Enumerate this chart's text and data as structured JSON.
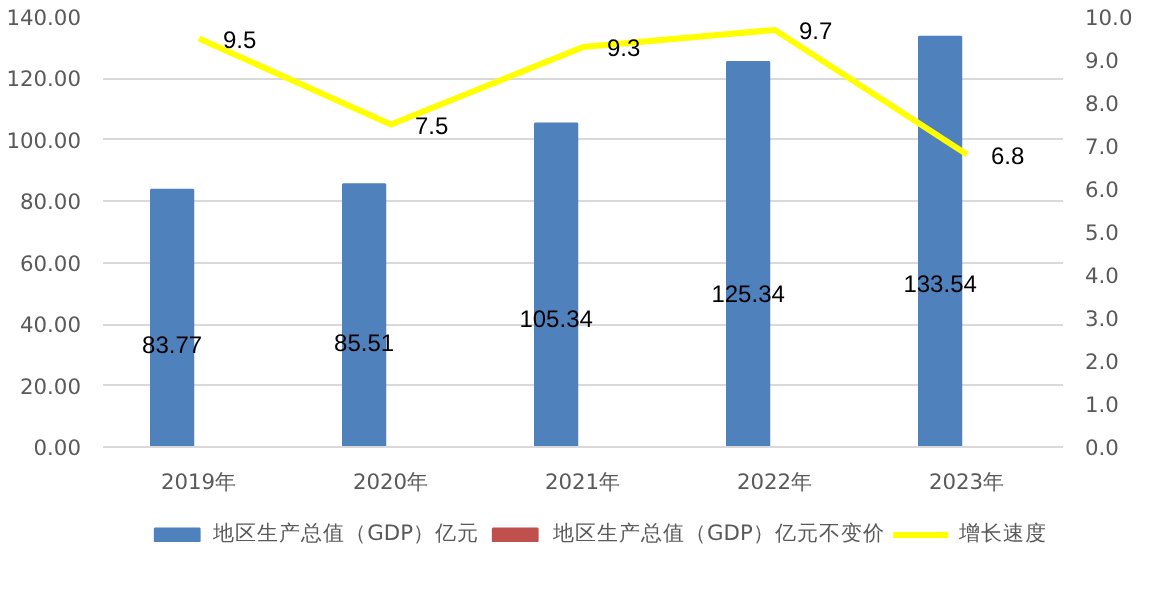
{
  "chart_data": {
    "type": "bar",
    "categories": [
      "2019年",
      "2020年",
      "2021年",
      "2022年",
      "2023年"
    ],
    "series": [
      {
        "name": "地区生产总值（GDP）亿元",
        "color": "#4f81bd",
        "values": [
          83.77,
          85.51,
          105.34,
          125.34,
          133.54
        ]
      },
      {
        "name": "地区生产总值（GDP）亿元不变价",
        "color": "#c0504d",
        "values": [
          null,
          null,
          null,
          null,
          null
        ]
      },
      {
        "name": "增长速度",
        "type": "line",
        "axis": "y2",
        "color": "#ffff00",
        "values": [
          9.5,
          7.5,
          9.3,
          9.7,
          6.8
        ]
      }
    ],
    "ylim": [
      0,
      140
    ],
    "yticks": [
      {
        "value": 0,
        "label": "0.00"
      },
      {
        "value": 20,
        "label": "20.00"
      },
      {
        "value": 40,
        "label": "40.00"
      },
      {
        "value": 60,
        "label": "60.00"
      },
      {
        "value": 80,
        "label": "80.00"
      },
      {
        "value": 100,
        "label": "100.00"
      },
      {
        "value": 120,
        "label": "120.00"
      },
      {
        "value": 140,
        "label": "140.00"
      }
    ],
    "y2lim": [
      0,
      10
    ],
    "y2ticks": [
      {
        "value": 0,
        "label": "0.0"
      },
      {
        "value": 1,
        "label": "1.0"
      },
      {
        "value": 2,
        "label": "2.0"
      },
      {
        "value": 3,
        "label": "3.0"
      },
      {
        "value": 4,
        "label": "4.0"
      },
      {
        "value": 5,
        "label": "5.0"
      },
      {
        "value": 6,
        "label": "6.0"
      },
      {
        "value": 7,
        "label": "7.0"
      },
      {
        "value": 8,
        "label": "8.0"
      },
      {
        "value": 9,
        "label": "9.0"
      },
      {
        "value": 10,
        "label": "10.0"
      }
    ],
    "grid": "y",
    "legend": "bottom",
    "data_labels": true,
    "marker": "none",
    "line_style": "solid"
  }
}
